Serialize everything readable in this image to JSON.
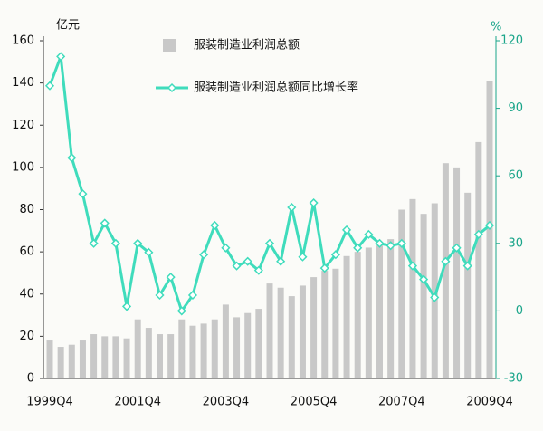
{
  "chart_data": {
    "type": "bar-line",
    "y_unit": "亿元",
    "y2_unit": "%",
    "categories": [
      "1999Q4",
      null,
      null,
      null,
      null,
      null,
      null,
      null,
      "2001Q4",
      null,
      null,
      null,
      null,
      null,
      null,
      null,
      "2003Q4",
      null,
      null,
      null,
      null,
      null,
      null,
      null,
      "2005Q4",
      null,
      null,
      null,
      null,
      null,
      null,
      null,
      "2007Q4",
      null,
      null,
      null,
      null,
      null,
      null,
      null,
      "2009Q4"
    ],
    "series": [
      {
        "name": "服装制造业利润总额",
        "type": "bar",
        "color": "#c8c8c8",
        "values": [
          18,
          15,
          16,
          18,
          21,
          20,
          20,
          19,
          28,
          24,
          21,
          21,
          28,
          25,
          26,
          28,
          35,
          29,
          31,
          33,
          45,
          43,
          39,
          44,
          48,
          51,
          52,
          58,
          60,
          62,
          63,
          66,
          80,
          85,
          78,
          83,
          102,
          100,
          88,
          112,
          141
        ]
      },
      {
        "name": "服装制造业利润总额同比增长率",
        "type": "line",
        "axis": "y2",
        "color": "#3fdcbc",
        "values": [
          100,
          113,
          68,
          52,
          30,
          39,
          30,
          2,
          30,
          26,
          7,
          15,
          0,
          7,
          25,
          38,
          28,
          20,
          22,
          18,
          30,
          22,
          46,
          24,
          48,
          19,
          25,
          36,
          28,
          34,
          30,
          29,
          30,
          20,
          14,
          6,
          22,
          28,
          20,
          34,
          38
        ]
      }
    ],
    "ylim": [
      0,
      160
    ],
    "yticks": [
      0,
      20,
      40,
      60,
      80,
      100,
      120,
      140,
      160
    ],
    "y2lim": [
      -30,
      120
    ],
    "y2ticks": [
      -30,
      0,
      30,
      60,
      90,
      120
    ]
  }
}
